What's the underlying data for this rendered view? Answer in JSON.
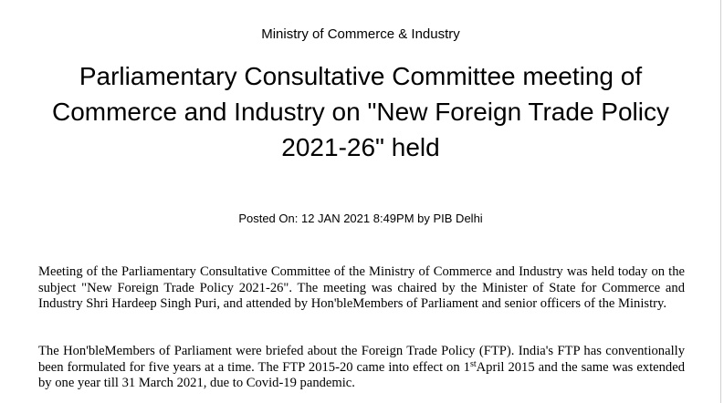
{
  "header": {
    "ministry": "Ministry of Commerce & Industry",
    "title": "Parliamentary Consultative Committee meeting of Commerce and Industry on \"New Foreign Trade Policy 2021-26\" held",
    "posted": "Posted On: 12 JAN 2021 8:49PM by PIB Delhi"
  },
  "body": {
    "paragraph1": "Meeting of the Parliamentary Consultative Committee of the Ministry of Commerce and Industry was held today on the subject \"New Foreign Trade Policy 2021-26\". The meeting was chaired by the Minister of State for Commerce and Industry Shri Hardeep Singh Puri, and attended by Hon'bleMembers of Parliament and senior officers of the Ministry.",
    "paragraph2": {
      "before": "The Hon'bleMembers of Parliament were briefed about the Foreign Trade Policy (FTP). India's FTP has conventionally been formulated for five years at a time. The FTP 2015-20 came into effect on 1",
      "superscript": "st",
      "after": "April 2015 and the same was extended by one year till 31 March 2021, due to Covid-19 pandemic."
    }
  }
}
